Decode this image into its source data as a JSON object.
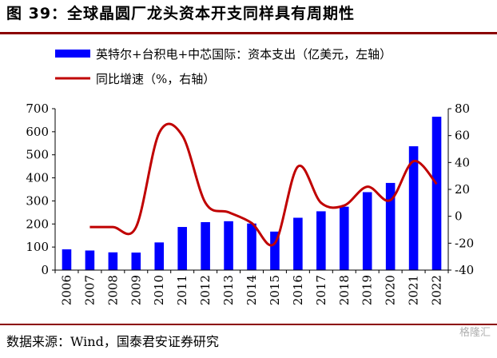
{
  "title": "图 39：全球晶圆厂龙头资本开支同样具有周期性",
  "source": "数据来源：Wind，国泰君安证券研究",
  "watermark": "格隆汇",
  "colors": {
    "bar": "#0000ff",
    "line": "#c00000",
    "rule": "#8b0000"
  },
  "chart_data": {
    "type": "bar",
    "categories": [
      "2006",
      "2007",
      "2008",
      "2009",
      "2010",
      "2011",
      "2012",
      "2013",
      "2014",
      "2015",
      "2016",
      "2017",
      "2018",
      "2019",
      "2020",
      "2021",
      "2022"
    ],
    "series": [
      {
        "name": "英特尔+台积电+中芯国际：资本支出（亿美元，左轴）",
        "type": "bar",
        "axis": "left",
        "values": [
          90,
          85,
          77,
          76,
          120,
          187,
          208,
          212,
          202,
          167,
          227,
          255,
          275,
          338,
          378,
          537,
          665
        ]
      },
      {
        "name": "同比增速（%，右轴）",
        "type": "line",
        "axis": "right",
        "values": [
          null,
          -8,
          -8,
          -8,
          62,
          60,
          10,
          3,
          -5,
          -20,
          37,
          10,
          8,
          22,
          12,
          41,
          24
        ]
      }
    ],
    "yleft": {
      "min": 0,
      "max": 700,
      "ticks": [
        "0",
        "100",
        "200",
        "300",
        "400",
        "500",
        "600",
        "700"
      ]
    },
    "yright": {
      "min": -40,
      "max": 80,
      "ticks": [
        "-40",
        "-20",
        "0",
        "20",
        "40",
        "60",
        "80"
      ]
    },
    "legend_position": "top-left",
    "grid": false
  }
}
